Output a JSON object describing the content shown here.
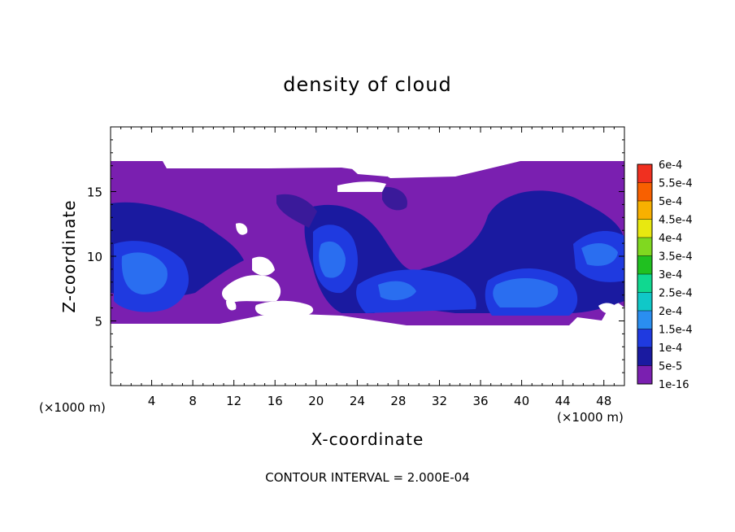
{
  "chart_data": {
    "type": "heatmap",
    "title": "density of cloud",
    "xlabel": "X-coordinate",
    "ylabel": "Z-coordinate",
    "x_unit": "(×1000 m)",
    "y_unit": "(×1000 m)",
    "footer": "CONTOUR INTERVAL = 2.000E-04",
    "xlim": [
      0,
      50
    ],
    "ylim": [
      0,
      20
    ],
    "xticks": [
      4,
      8,
      12,
      16,
      20,
      24,
      28,
      32,
      36,
      40,
      44,
      48
    ],
    "yticks": [
      5,
      10,
      15
    ],
    "colorbar": {
      "levels": [
        {
          "label": "1e-16",
          "color": "#7a1fb0"
        },
        {
          "label": "5e-5",
          "color": "#1a1aa0"
        },
        {
          "label": "1e-4",
          "color": "#1f3ae0"
        },
        {
          "label": "1.5e-4",
          "color": "#2a8ef0"
        },
        {
          "label": "2e-4",
          "color": "#10c8c8"
        },
        {
          "label": "2.5e-4",
          "color": "#10d890"
        },
        {
          "label": "3e-4",
          "color": "#20c020"
        },
        {
          "label": "3.5e-4",
          "color": "#80d820"
        },
        {
          "label": "4e-4",
          "color": "#e8e810"
        },
        {
          "label": "4.5e-4",
          "color": "#f8b000"
        },
        {
          "label": "5e-4",
          "color": "#f86000"
        },
        {
          "label": "5.5e-4",
          "color": "#f03020"
        },
        {
          "label": "6e-4",
          "color": "#f89090"
        }
      ]
    },
    "cloud_layer": {
      "base_km": 4.8,
      "top_km": 17.3
    }
  }
}
